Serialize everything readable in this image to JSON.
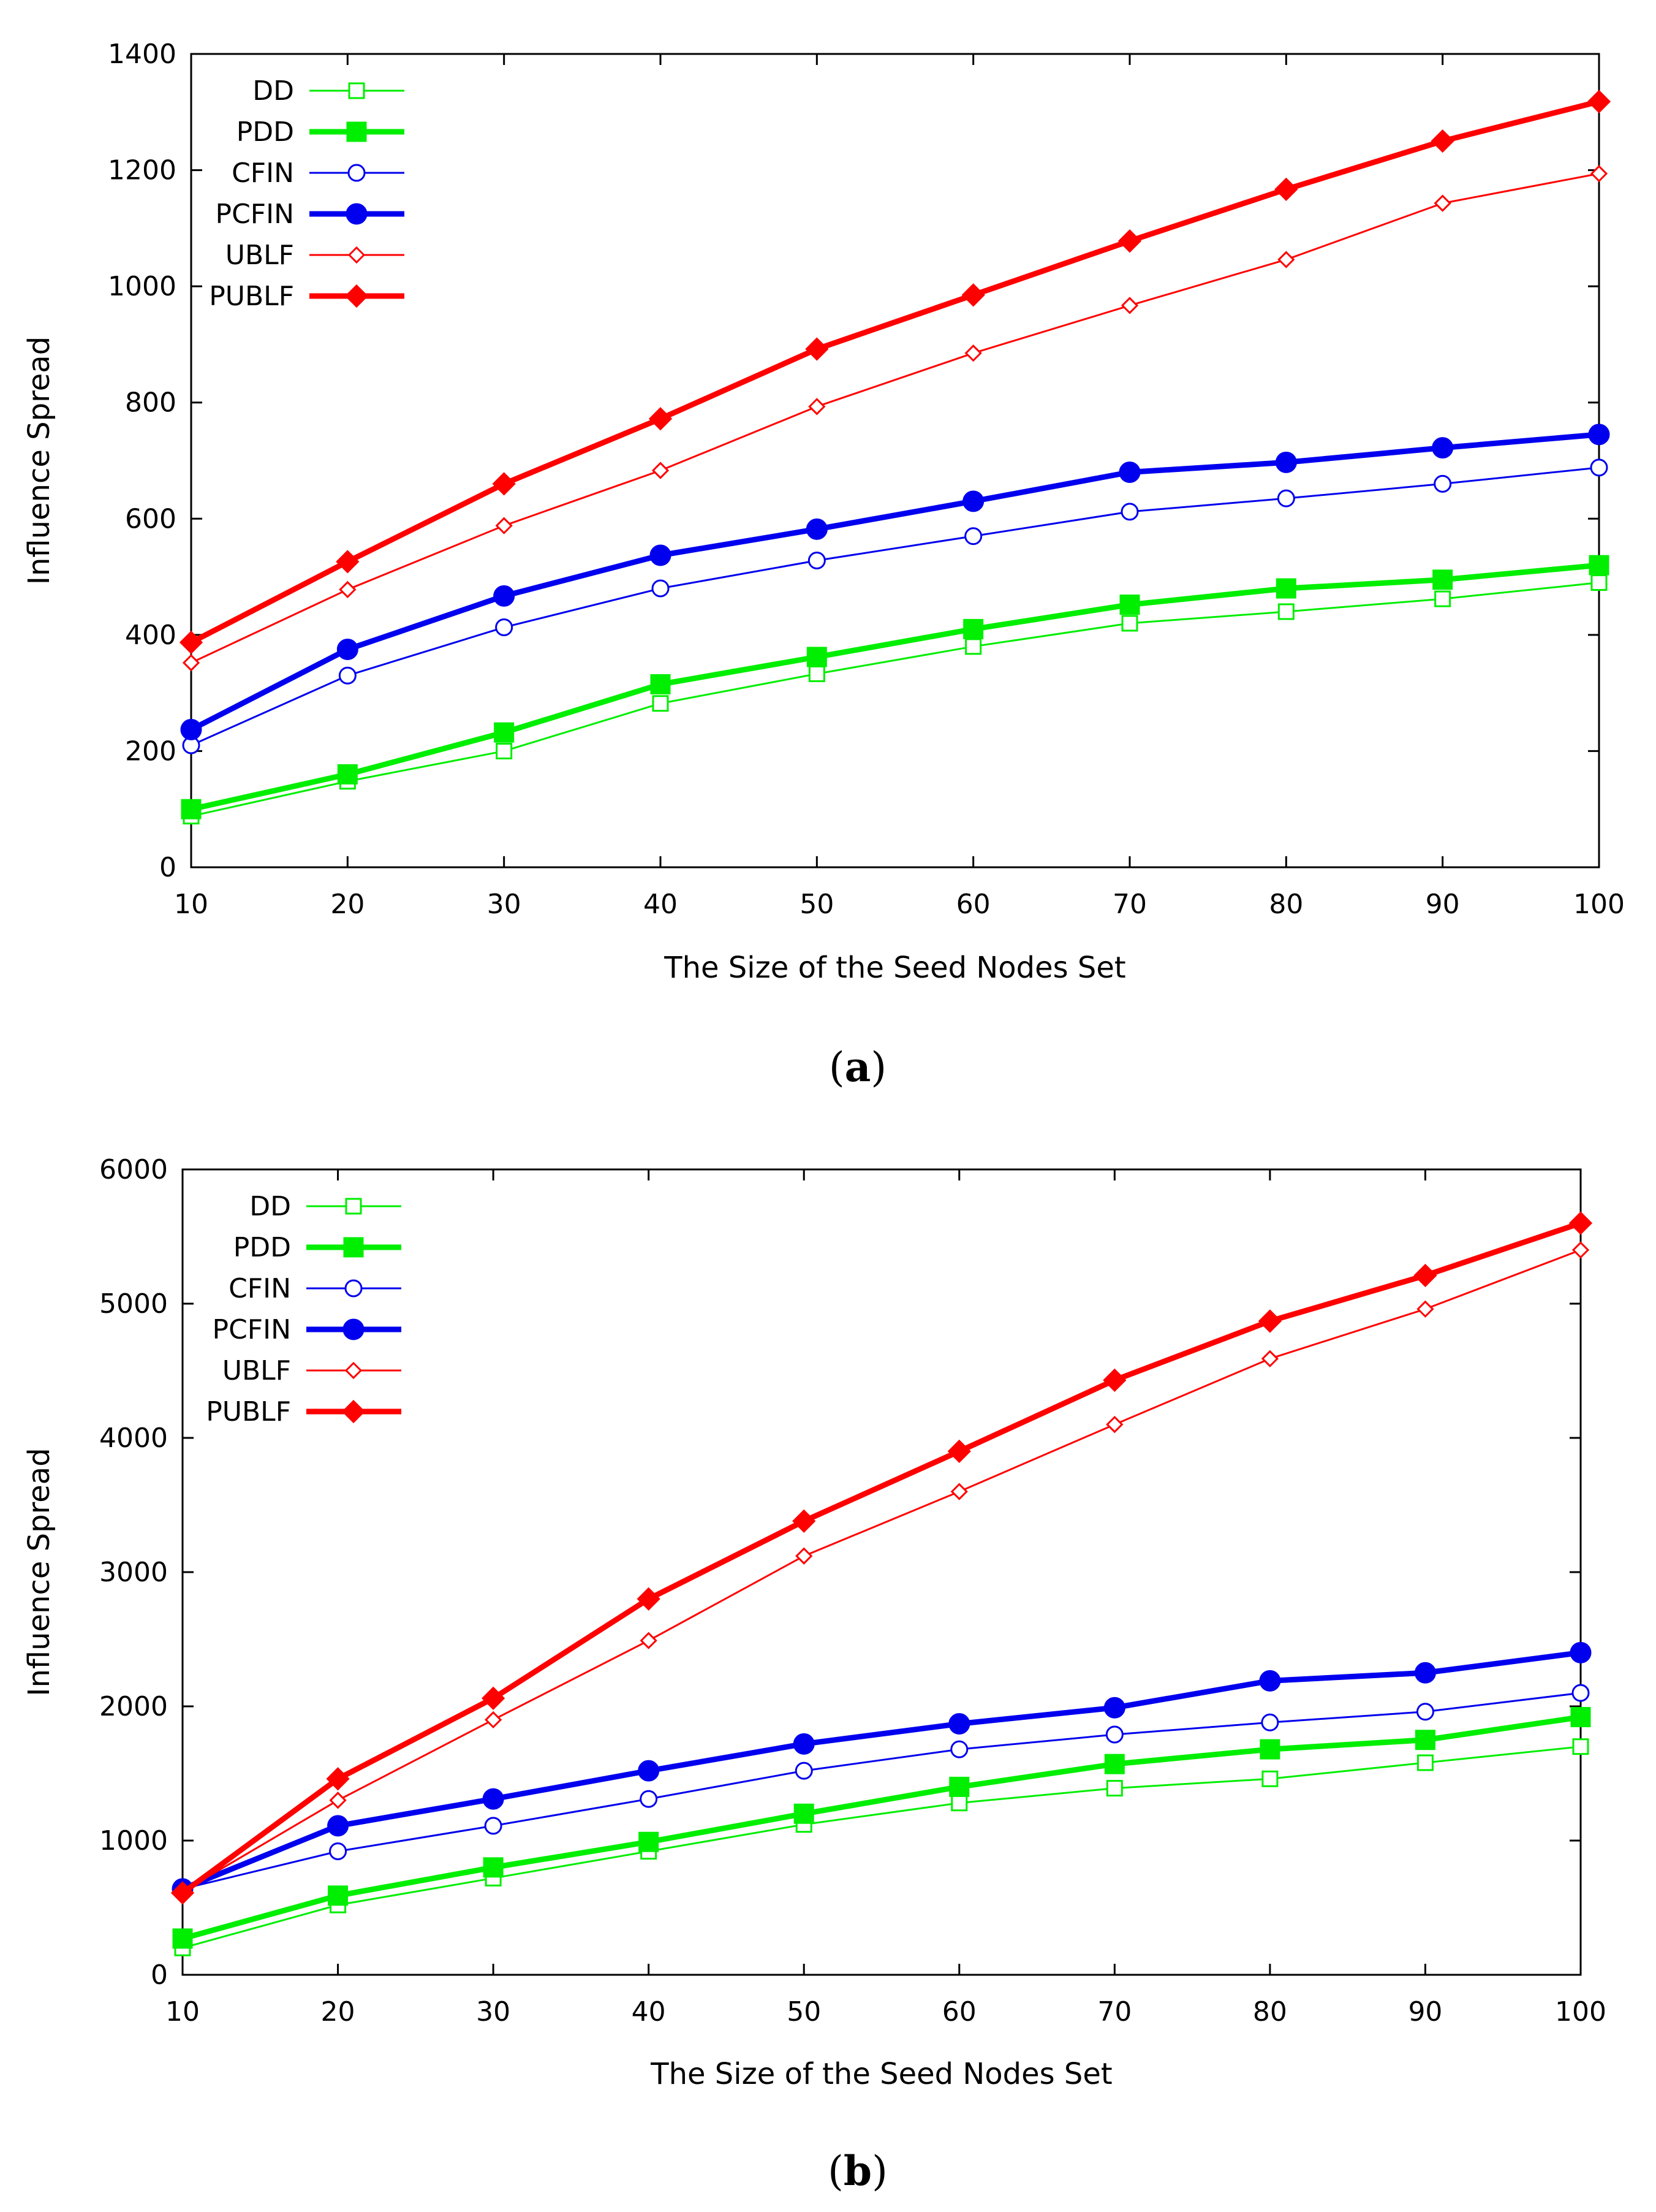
{
  "chart_data": [
    {
      "type": "line",
      "panel": "a",
      "caption_letter": "a",
      "xlabel": "The Size of the Seed Nodes Set",
      "ylabel": "Influence Spread",
      "x": [
        10,
        20,
        30,
        40,
        50,
        60,
        70,
        80,
        90,
        100
      ],
      "xticks": [
        "10",
        "20",
        "30",
        "40",
        "50",
        "60",
        "70",
        "80",
        "90",
        "100"
      ],
      "ylim": [
        0,
        1400
      ],
      "yticks": [
        0,
        200,
        400,
        600,
        800,
        1000,
        1200,
        1400
      ],
      "legend_position": "top-left",
      "series": [
        {
          "name": "DD",
          "color": "#00ee00",
          "marker": "open-square",
          "weight": "thin",
          "values": [
            88,
            148,
            200,
            282,
            333,
            380,
            420,
            440,
            462,
            490
          ]
        },
        {
          "name": "PDD",
          "color": "#00ee00",
          "marker": "filled-square",
          "weight": "thick",
          "values": [
            100,
            160,
            232,
            315,
            362,
            410,
            452,
            480,
            495,
            520
          ]
        },
        {
          "name": "CFIN",
          "color": "#0000ee",
          "marker": "open-circle",
          "weight": "thin",
          "values": [
            210,
            330,
            413,
            480,
            528,
            570,
            612,
            635,
            660,
            688
          ]
        },
        {
          "name": "PCFIN",
          "color": "#0000ee",
          "marker": "filled-circle",
          "weight": "thick",
          "values": [
            237,
            375,
            467,
            537,
            582,
            630,
            680,
            697,
            722,
            745
          ]
        },
        {
          "name": "UBLF",
          "color": "#ff0000",
          "marker": "open-diamond",
          "weight": "thin",
          "values": [
            352,
            478,
            588,
            683,
            793,
            885,
            967,
            1046,
            1143,
            1194
          ]
        },
        {
          "name": "PUBLF",
          "color": "#ff0000",
          "marker": "filled-diamond",
          "weight": "thick",
          "values": [
            387,
            526,
            660,
            772,
            892,
            985,
            1078,
            1167,
            1250,
            1318
          ]
        }
      ]
    },
    {
      "type": "line",
      "panel": "b",
      "caption_letter": "b",
      "xlabel": "The Size of the Seed Nodes Set",
      "ylabel": "Influence Spread",
      "x": [
        10,
        20,
        30,
        40,
        50,
        60,
        70,
        80,
        90,
        100
      ],
      "xticks": [
        "10",
        "20",
        "30",
        "40",
        "50",
        "60",
        "70",
        "80",
        "90",
        "100"
      ],
      "ylim": [
        0,
        6000
      ],
      "yticks": [
        0,
        1000,
        2000,
        3000,
        4000,
        5000,
        6000
      ],
      "legend_position": "top-left",
      "series": [
        {
          "name": "DD",
          "color": "#00ee00",
          "marker": "open-square",
          "weight": "thin",
          "values": [
            200,
            520,
            720,
            920,
            1120,
            1280,
            1390,
            1460,
            1580,
            1700
          ]
        },
        {
          "name": "PDD",
          "color": "#00ee00",
          "marker": "filled-square",
          "weight": "thick",
          "values": [
            270,
            590,
            800,
            990,
            1200,
            1400,
            1570,
            1680,
            1750,
            1920
          ]
        },
        {
          "name": "CFIN",
          "color": "#0000ee",
          "marker": "open-circle",
          "weight": "thin",
          "values": [
            640,
            920,
            1110,
            1310,
            1520,
            1680,
            1790,
            1880,
            1960,
            2100
          ]
        },
        {
          "name": "PCFIN",
          "color": "#0000ee",
          "marker": "filled-circle",
          "weight": "thick",
          "values": [
            640,
            1110,
            1310,
            1520,
            1720,
            1870,
            1990,
            2190,
            2250,
            2400
          ]
        },
        {
          "name": "UBLF",
          "color": "#ff0000",
          "marker": "open-diamond",
          "weight": "thin",
          "values": [
            620,
            1300,
            1900,
            2490,
            3120,
            3600,
            4100,
            4590,
            4960,
            5400
          ]
        },
        {
          "name": "PUBLF",
          "color": "#ff0000",
          "marker": "filled-diamond",
          "weight": "thick",
          "values": [
            610,
            1460,
            2060,
            2800,
            3380,
            3900,
            4430,
            4870,
            5210,
            5600
          ]
        }
      ]
    }
  ]
}
